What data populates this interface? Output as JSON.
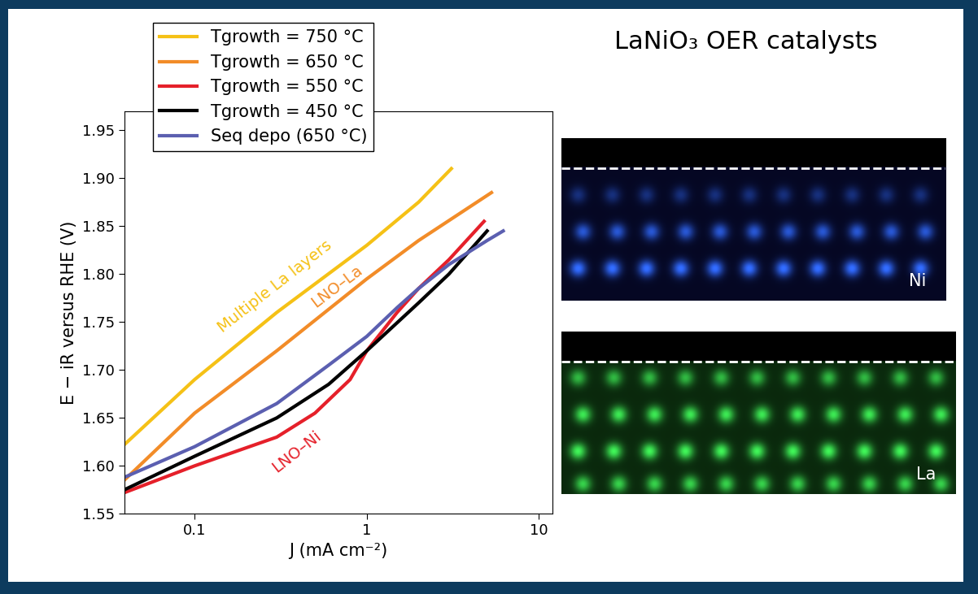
{
  "chart_data": {
    "type": "line",
    "xlabel": "J (mA cm⁻²)",
    "ylabel": "E − iR versus RHE (V)",
    "log": "x",
    "xlim": [
      0.039,
      12
    ],
    "ylim": [
      1.55,
      1.97
    ],
    "xticks": [
      0.1,
      1,
      10
    ],
    "yticks": [
      1.55,
      {
        "value": 1.6,
        "label": "1.60"
      },
      1.65,
      {
        "value": 1.7,
        "label": "1.70"
      },
      1.75,
      {
        "value": 1.8,
        "label": "1.80"
      },
      1.85,
      {
        "value": 1.9,
        "label": "1.90"
      },
      1.95
    ],
    "legend": "upper left",
    "series": [
      {
        "name": "Tgrowth = 750 °C",
        "color": "#f5c116",
        "annotation": "Multiple La layers",
        "x": [
          0.039,
          0.1,
          0.3,
          1,
          2,
          3.1
        ],
        "values": [
          1.622,
          1.69,
          1.76,
          1.83,
          1.875,
          1.91
        ]
      },
      {
        "name": "Tgrowth = 650 °C",
        "color": "#f28c28",
        "annotation": "LNO–La",
        "x": [
          0.039,
          0.1,
          0.3,
          1,
          2,
          5.3
        ],
        "values": [
          1.585,
          1.655,
          1.72,
          1.795,
          1.835,
          1.885
        ]
      },
      {
        "name": "Tgrowth = 550 °C",
        "color": "#e5202a",
        "annotation": "LNO–Ni",
        "x": [
          0.039,
          0.1,
          0.3,
          0.5,
          0.8,
          1,
          1.5,
          2,
          3,
          4.8
        ],
        "values": [
          1.572,
          1.6,
          1.63,
          1.655,
          1.69,
          1.72,
          1.76,
          1.785,
          1.815,
          1.855
        ]
      },
      {
        "name": "Tgrowth = 450 °C",
        "color": "#000000",
        "x": [
          0.039,
          0.1,
          0.3,
          0.6,
          1,
          2,
          3,
          5
        ],
        "values": [
          1.575,
          1.61,
          1.65,
          1.685,
          1.72,
          1.77,
          1.8,
          1.845
        ]
      },
      {
        "name": "Seq depo (650 °C)",
        "color": "#5b5fb0",
        "x": [
          0.039,
          0.1,
          0.3,
          0.6,
          1,
          1.5,
          2,
          3,
          5,
          6.2
        ],
        "values": [
          1.588,
          1.62,
          1.665,
          1.705,
          1.735,
          1.765,
          1.785,
          1.81,
          1.835,
          1.845
        ]
      }
    ]
  },
  "figure": {
    "title": "LaNiO₃ OER catalysts",
    "image_labels": [
      "Ni",
      "La"
    ]
  }
}
